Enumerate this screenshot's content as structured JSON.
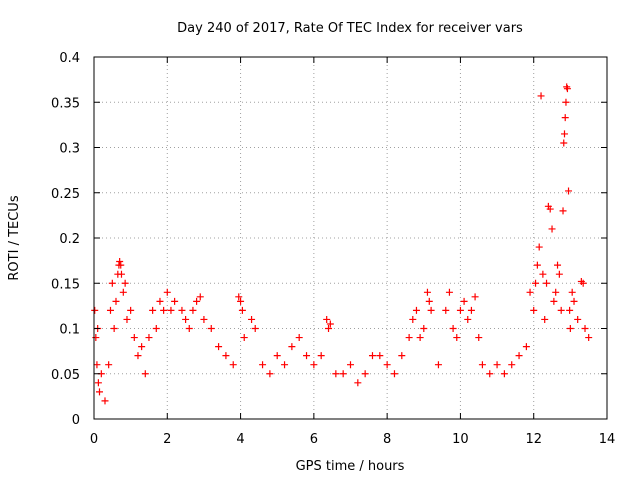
{
  "chart_data": {
    "type": "scatter",
    "title": "Day 240 of 2017, Rate Of TEC Index for receiver vars",
    "xlabel": "GPS time / hours",
    "ylabel": "ROTI / TECUs",
    "xlim": [
      0,
      14
    ],
    "ylim": [
      0,
      0.4
    ],
    "xticks": [
      0,
      2,
      4,
      6,
      8,
      10,
      12,
      14
    ],
    "xtick_labels": [
      "0",
      "2",
      "4",
      "6",
      "8",
      "10",
      "12",
      "14"
    ],
    "yticks": [
      0,
      0.05,
      0.1,
      0.15,
      0.2,
      0.25,
      0.3,
      0.35,
      0.4
    ],
    "ytick_labels": [
      "0",
      "0.05",
      "0.1",
      "0.15",
      "0.2",
      "0.25",
      "0.3",
      "0.35",
      "0.4"
    ],
    "grid": true,
    "marker": "+",
    "marker_color": "#ff0000",
    "series": [
      {
        "points": [
          [
            0.02,
            0.12
          ],
          [
            0.05,
            0.09
          ],
          [
            0.08,
            0.06
          ],
          [
            0.1,
            0.1
          ],
          [
            0.12,
            0.04
          ],
          [
            0.15,
            0.03
          ],
          [
            0.2,
            0.05
          ],
          [
            0.3,
            0.02
          ],
          [
            0.4,
            0.06
          ],
          [
            0.45,
            0.12
          ],
          [
            0.5,
            0.15
          ],
          [
            0.55,
            0.1
          ],
          [
            0.6,
            0.13
          ],
          [
            0.65,
            0.16
          ],
          [
            0.68,
            0.17
          ],
          [
            0.7,
            0.174
          ],
          [
            0.73,
            0.17
          ],
          [
            0.75,
            0.16
          ],
          [
            0.8,
            0.14
          ],
          [
            0.85,
            0.15
          ],
          [
            0.9,
            0.11
          ],
          [
            1.0,
            0.12
          ],
          [
            1.1,
            0.09
          ],
          [
            1.2,
            0.07
          ],
          [
            1.3,
            0.08
          ],
          [
            1.4,
            0.05
          ],
          [
            1.5,
            0.09
          ],
          [
            1.6,
            0.12
          ],
          [
            1.7,
            0.1
          ],
          [
            1.8,
            0.13
          ],
          [
            1.9,
            0.12
          ],
          [
            2.0,
            0.14
          ],
          [
            2.1,
            0.12
          ],
          [
            2.2,
            0.13
          ],
          [
            2.4,
            0.12
          ],
          [
            2.5,
            0.11
          ],
          [
            2.6,
            0.1
          ],
          [
            2.7,
            0.12
          ],
          [
            2.8,
            0.13
          ],
          [
            2.9,
            0.135
          ],
          [
            3.0,
            0.11
          ],
          [
            3.2,
            0.1
          ],
          [
            3.4,
            0.08
          ],
          [
            3.6,
            0.07
          ],
          [
            3.8,
            0.06
          ],
          [
            3.95,
            0.135
          ],
          [
            4.0,
            0.13
          ],
          [
            4.05,
            0.12
          ],
          [
            4.1,
            0.09
          ],
          [
            4.3,
            0.11
          ],
          [
            4.4,
            0.1
          ],
          [
            4.6,
            0.06
          ],
          [
            4.8,
            0.05
          ],
          [
            5.0,
            0.07
          ],
          [
            5.2,
            0.06
          ],
          [
            5.4,
            0.08
          ],
          [
            5.6,
            0.09
          ],
          [
            5.8,
            0.07
          ],
          [
            6.0,
            0.06
          ],
          [
            6.2,
            0.07
          ],
          [
            6.35,
            0.11
          ],
          [
            6.45,
            0.105
          ],
          [
            6.4,
            0.1
          ],
          [
            6.6,
            0.05
          ],
          [
            6.8,
            0.05
          ],
          [
            7.0,
            0.06
          ],
          [
            7.2,
            0.04
          ],
          [
            7.4,
            0.05
          ],
          [
            7.6,
            0.07
          ],
          [
            7.8,
            0.07
          ],
          [
            8.0,
            0.06
          ],
          [
            8.2,
            0.05
          ],
          [
            8.4,
            0.07
          ],
          [
            8.6,
            0.09
          ],
          [
            8.7,
            0.11
          ],
          [
            8.8,
            0.12
          ],
          [
            8.9,
            0.09
          ],
          [
            9.0,
            0.1
          ],
          [
            9.1,
            0.14
          ],
          [
            9.15,
            0.13
          ],
          [
            9.2,
            0.12
          ],
          [
            9.4,
            0.06
          ],
          [
            9.6,
            0.12
          ],
          [
            9.7,
            0.14
          ],
          [
            9.8,
            0.1
          ],
          [
            9.9,
            0.09
          ],
          [
            10.0,
            0.12
          ],
          [
            10.1,
            0.13
          ],
          [
            10.2,
            0.11
          ],
          [
            10.3,
            0.12
          ],
          [
            10.4,
            0.135
          ],
          [
            10.5,
            0.09
          ],
          [
            10.6,
            0.06
          ],
          [
            10.8,
            0.05
          ],
          [
            11.0,
            0.06
          ],
          [
            11.2,
            0.05
          ],
          [
            11.4,
            0.06
          ],
          [
            11.6,
            0.07
          ],
          [
            11.8,
            0.08
          ],
          [
            11.9,
            0.14
          ],
          [
            12.0,
            0.12
          ],
          [
            12.05,
            0.15
          ],
          [
            12.1,
            0.17
          ],
          [
            12.15,
            0.19
          ],
          [
            12.2,
            0.357
          ],
          [
            12.25,
            0.16
          ],
          [
            12.3,
            0.11
          ],
          [
            12.35,
            0.15
          ],
          [
            12.4,
            0.235
          ],
          [
            12.45,
            0.232
          ],
          [
            12.5,
            0.21
          ],
          [
            12.55,
            0.13
          ],
          [
            12.6,
            0.14
          ],
          [
            12.65,
            0.17
          ],
          [
            12.7,
            0.16
          ],
          [
            12.75,
            0.12
          ],
          [
            12.8,
            0.23
          ],
          [
            12.82,
            0.305
          ],
          [
            12.84,
            0.315
          ],
          [
            12.86,
            0.333
          ],
          [
            12.88,
            0.35
          ],
          [
            12.9,
            0.367
          ],
          [
            12.92,
            0.365
          ],
          [
            12.95,
            0.252
          ],
          [
            12.98,
            0.12
          ],
          [
            13.0,
            0.1
          ],
          [
            13.05,
            0.14
          ],
          [
            13.1,
            0.13
          ],
          [
            13.2,
            0.11
          ],
          [
            13.3,
            0.152
          ],
          [
            13.35,
            0.15
          ],
          [
            13.4,
            0.1
          ],
          [
            13.5,
            0.09
          ]
        ]
      }
    ]
  }
}
